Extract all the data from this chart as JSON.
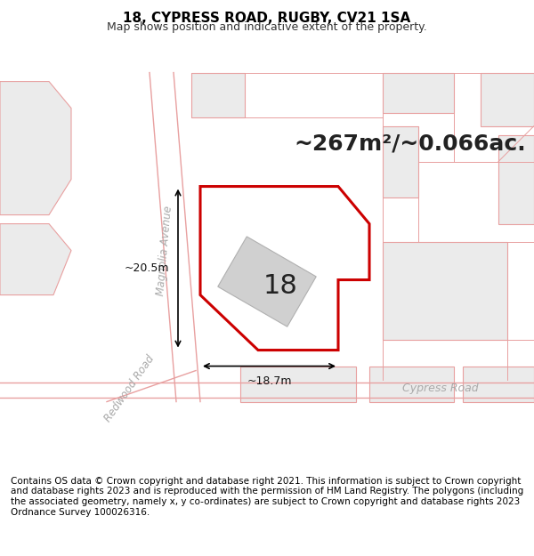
{
  "title": "18, CYPRESS ROAD, RUGBY, CV21 1SA",
  "subtitle": "Map shows position and indicative extent of the property.",
  "footer": "Contains OS data © Crown copyright and database right 2021. This information is subject to Crown copyright and database rights 2023 and is reproduced with the permission of HM Land Registry. The polygons (including the associated geometry, namely x, y co-ordinates) are subject to Crown copyright and database rights 2023 Ordnance Survey 100026316.",
  "area_text": "~267m²/~0.066ac.",
  "width_text": "~18.7m",
  "height_text": "~20.5m",
  "street_magnolia": "Magnolia Avenue",
  "street_cypress": "Cypress Road",
  "street_redwood": "Redwood Road",
  "house_number": "18",
  "bg_color": "#ffffff",
  "map_bg": "#ffffff",
  "road_fill": "#f0f0f0",
  "road_line": "#e8a0a0",
  "property_line": "#cc0000",
  "property_fill": "#ffffff",
  "building_fill": "#d8d8d8",
  "building_line": "#c0c0c0",
  "dim_line_color": "#000000",
  "text_color": "#333333",
  "title_fontsize": 11,
  "subtitle_fontsize": 9,
  "footer_fontsize": 7.5,
  "area_fontsize": 18,
  "map_border_color": "#cccccc",
  "fig_width": 6.0,
  "fig_height": 6.25
}
